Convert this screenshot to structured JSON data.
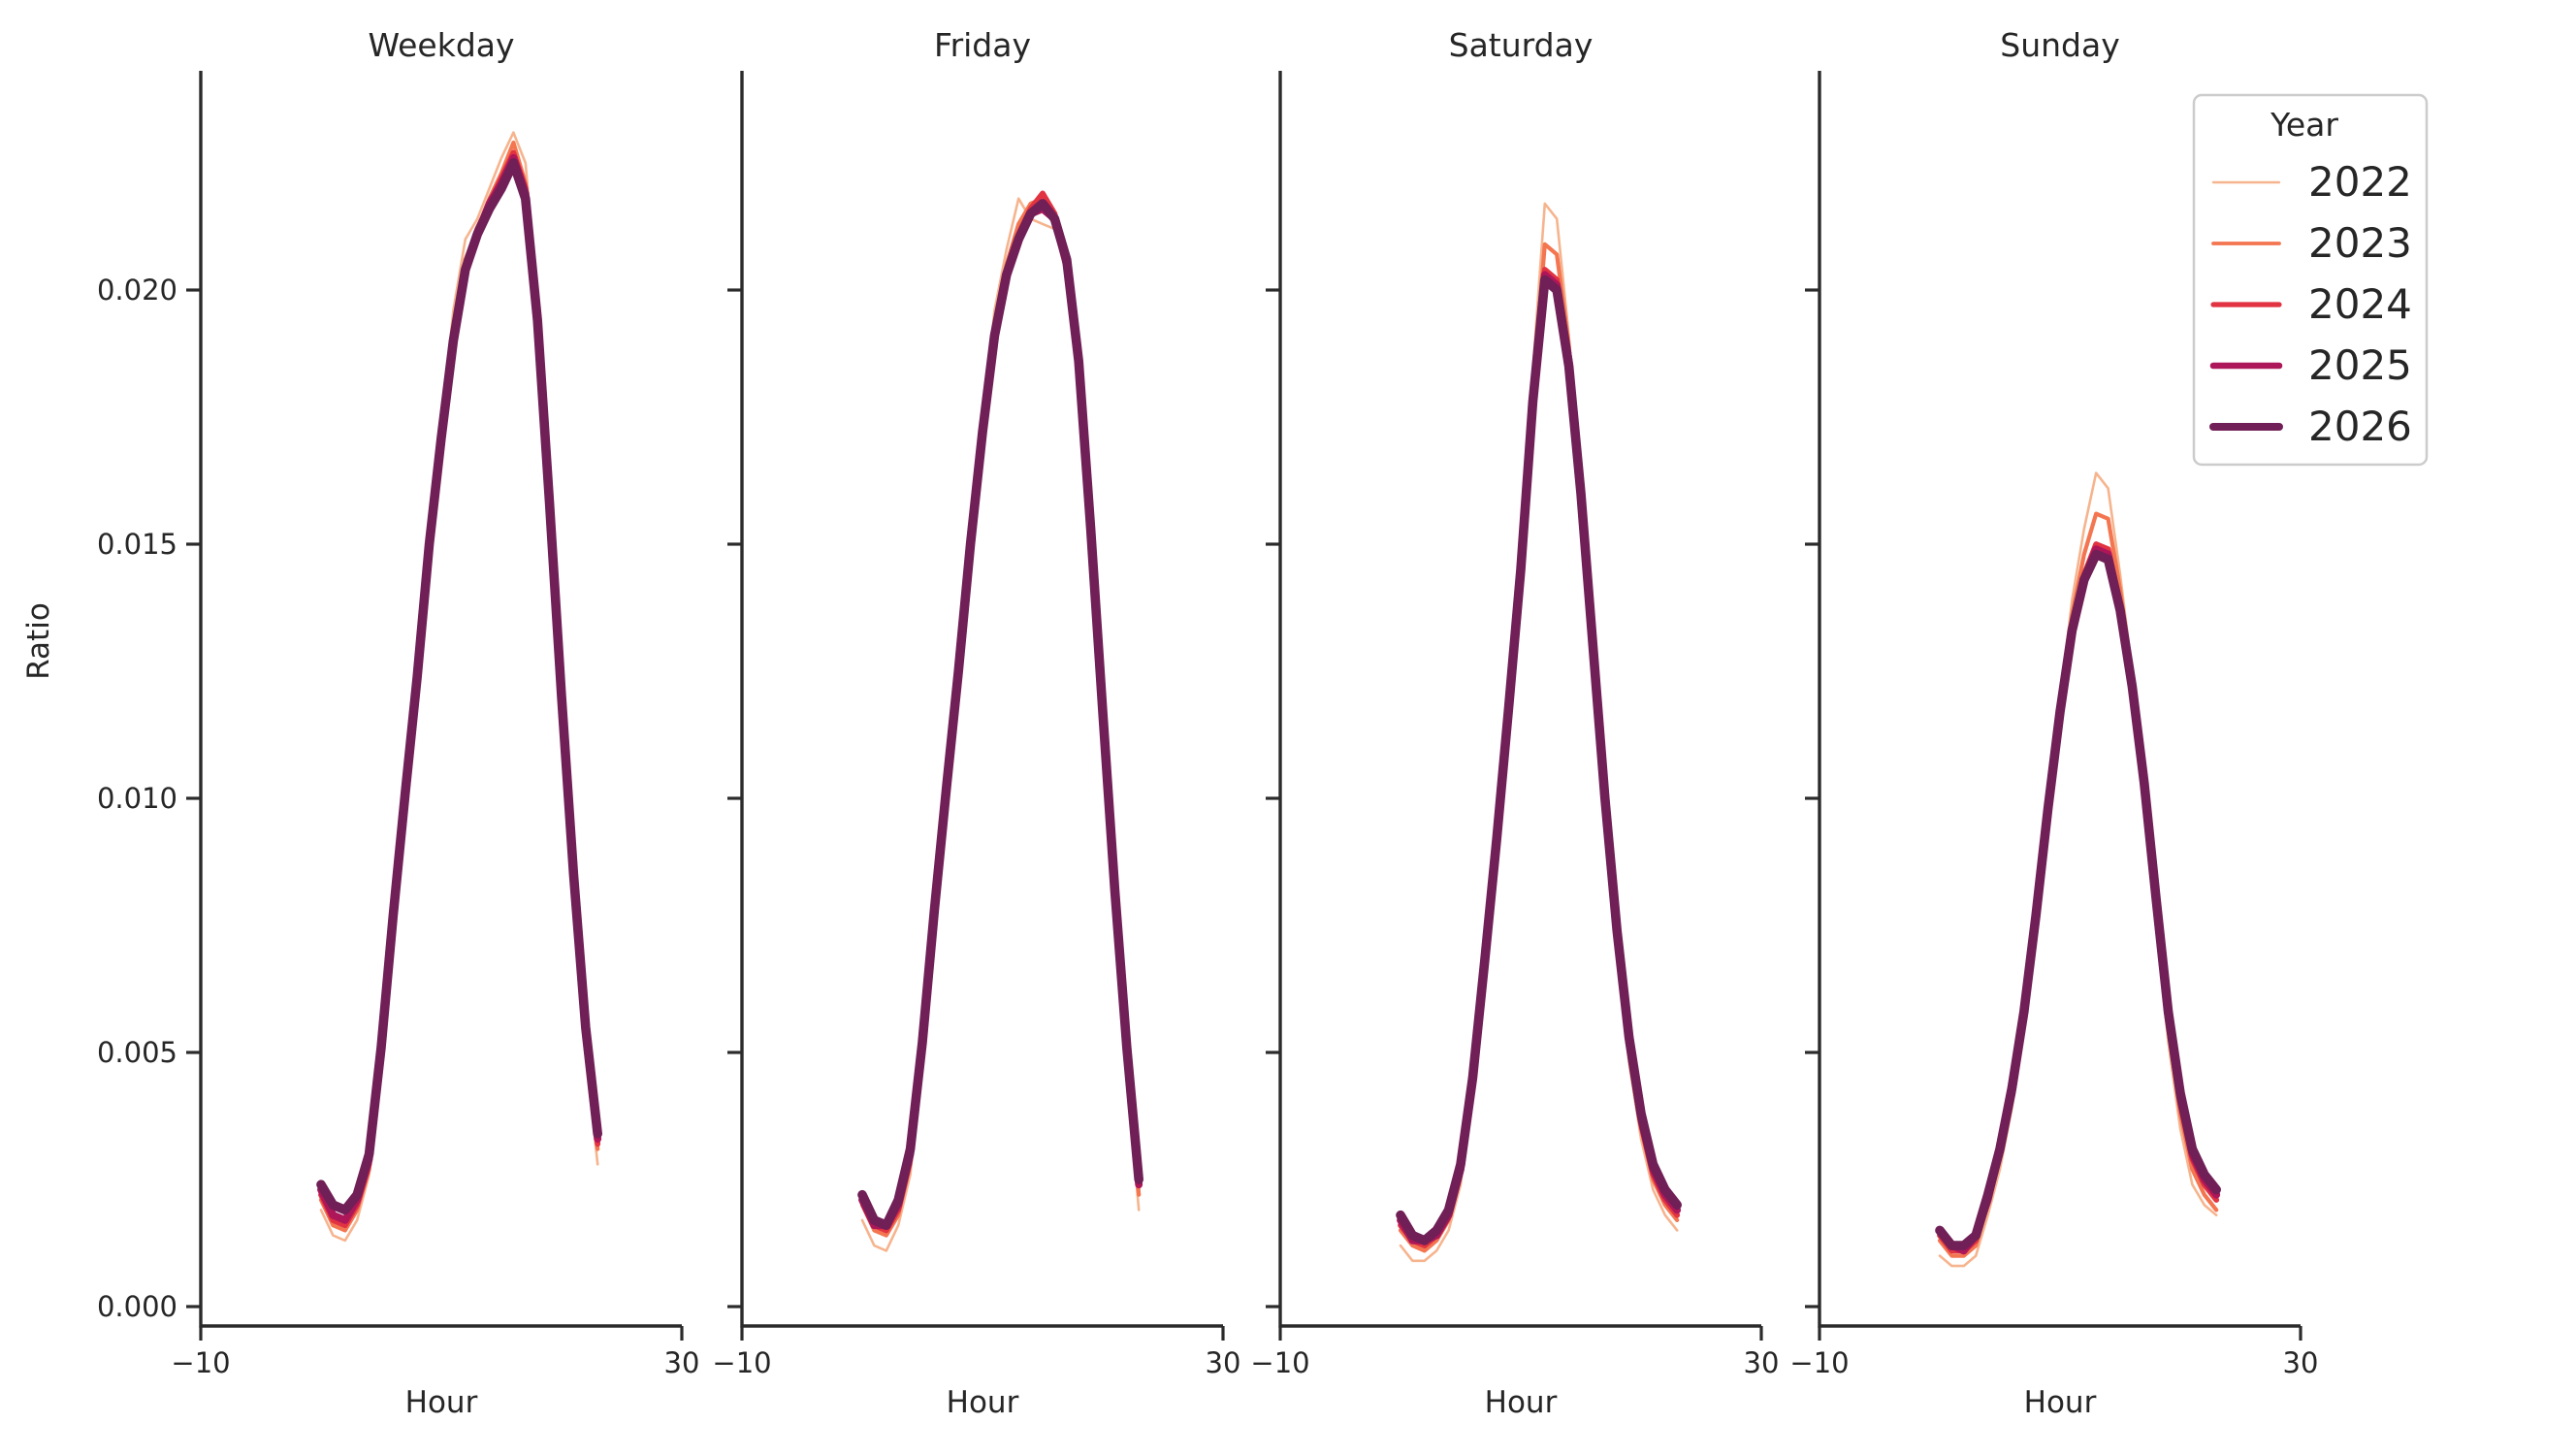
{
  "chart_data": {
    "type": "line",
    "xlabel": "Hour",
    "ylabel": "Ratio",
    "x_hours": [
      0,
      1,
      2,
      3,
      4,
      5,
      6,
      7,
      8,
      9,
      10,
      11,
      12,
      13,
      14,
      15,
      16,
      17,
      18,
      19,
      20,
      21,
      22,
      23
    ],
    "xlim": [
      -10,
      30
    ],
    "ylim": [
      -0.0004,
      0.0243
    ],
    "grid": false,
    "xtick_values": [
      -10,
      30
    ],
    "xtick_labels": [
      "−10",
      "30"
    ],
    "ytick_values": [
      0,
      0.005,
      0.01,
      0.015,
      0.02
    ],
    "ytick_labels": [
      "0.000",
      "0.005",
      "0.010",
      "0.015",
      "0.020"
    ],
    "legend": {
      "title": "Year",
      "position": "upper right outside"
    },
    "series": [
      {
        "name": "2022",
        "color": "#f6b48e",
        "plot_width": 2.6,
        "legend_width": 2.4
      },
      {
        "name": "2023",
        "color": "#f37651",
        "plot_width": 4.2,
        "legend_width": 3.8
      },
      {
        "name": "2024",
        "color": "#e13342",
        "plot_width": 5.8,
        "legend_width": 5.2
      },
      {
        "name": "2025",
        "color": "#ad1759",
        "plot_width": 7.8,
        "legend_width": 6.6
      },
      {
        "name": "2026",
        "color": "#701f57",
        "plot_width": 9.6,
        "legend_width": 8.0
      }
    ],
    "facets": [
      {
        "title": "Weekday",
        "series": [
          {
            "name": "2022",
            "values": [
              0.0019,
              0.0014,
              0.0013,
              0.0017,
              0.0026,
              0.0049,
              0.0077,
              0.0101,
              0.0125,
              0.0151,
              0.0173,
              0.0196,
              0.021,
              0.0214,
              0.022,
              0.0226,
              0.0231,
              0.0225,
              0.0198,
              0.0159,
              0.0119,
              0.0083,
              0.005,
              0.0028
            ]
          },
          {
            "name": "2023",
            "values": [
              0.0021,
              0.0016,
              0.0015,
              0.0019,
              0.0027,
              0.005,
              0.0077,
              0.0101,
              0.0124,
              0.015,
              0.0171,
              0.0191,
              0.0206,
              0.0212,
              0.0218,
              0.0223,
              0.0229,
              0.0221,
              0.0196,
              0.0158,
              0.0119,
              0.0084,
              0.0052,
              0.0031
            ]
          },
          {
            "name": "2024",
            "values": [
              0.0022,
              0.0017,
              0.0016,
              0.002,
              0.0028,
              0.005,
              0.0077,
              0.0101,
              0.0124,
              0.015,
              0.0171,
              0.019,
              0.0205,
              0.0212,
              0.0217,
              0.0222,
              0.0227,
              0.022,
              0.0195,
              0.0158,
              0.012,
              0.0085,
              0.0053,
              0.0032
            ]
          },
          {
            "name": "2025",
            "values": [
              0.0023,
              0.0018,
              0.0017,
              0.0021,
              0.0029,
              0.005,
              0.0077,
              0.0101,
              0.0124,
              0.015,
              0.0171,
              0.019,
              0.0204,
              0.0211,
              0.0217,
              0.0221,
              0.0226,
              0.0219,
              0.0194,
              0.0158,
              0.012,
              0.0085,
              0.0054,
              0.0033
            ]
          },
          {
            "name": "2026",
            "values": [
              0.0024,
              0.002,
              0.0019,
              0.0022,
              0.003,
              0.0051,
              0.0077,
              0.0101,
              0.0124,
              0.015,
              0.0171,
              0.019,
              0.0204,
              0.0211,
              0.0216,
              0.022,
              0.0225,
              0.0218,
              0.0194,
              0.0158,
              0.012,
              0.0085,
              0.0055,
              0.0034
            ]
          }
        ]
      },
      {
        "title": "Friday",
        "series": [
          {
            "name": "2022",
            "values": [
              0.0017,
              0.0012,
              0.0011,
              0.0016,
              0.0026,
              0.005,
              0.0078,
              0.0102,
              0.0126,
              0.0151,
              0.0174,
              0.0196,
              0.0208,
              0.0218,
              0.0214,
              0.0213,
              0.0212,
              0.0203,
              0.0183,
              0.015,
              0.0114,
              0.0078,
              0.0046,
              0.0019
            ]
          },
          {
            "name": "2023",
            "values": [
              0.002,
              0.0015,
              0.0014,
              0.0018,
              0.0028,
              0.0051,
              0.0078,
              0.0102,
              0.0125,
              0.015,
              0.0172,
              0.0192,
              0.0205,
              0.0213,
              0.0217,
              0.0218,
              0.0214,
              0.0205,
              0.0185,
              0.0152,
              0.0116,
              0.008,
              0.0048,
              0.0022
            ]
          },
          {
            "name": "2024",
            "values": [
              0.0021,
              0.0016,
              0.0015,
              0.0019,
              0.0029,
              0.0051,
              0.0078,
              0.0102,
              0.0125,
              0.015,
              0.0172,
              0.0191,
              0.0204,
              0.0211,
              0.0216,
              0.0219,
              0.0215,
              0.0206,
              0.0186,
              0.0153,
              0.0117,
              0.0081,
              0.0049,
              0.0024
            ]
          },
          {
            "name": "2025",
            "values": [
              0.0021,
              0.0016,
              0.0016,
              0.002,
              0.003,
              0.0052,
              0.0078,
              0.0102,
              0.0125,
              0.015,
              0.0172,
              0.0191,
              0.0203,
              0.021,
              0.0215,
              0.0216,
              0.0214,
              0.0205,
              0.0186,
              0.0153,
              0.0117,
              0.0082,
              0.005,
              0.0024
            ]
          },
          {
            "name": "2026",
            "values": [
              0.0022,
              0.0017,
              0.0016,
              0.0021,
              0.0031,
              0.0052,
              0.0078,
              0.0102,
              0.0125,
              0.015,
              0.0172,
              0.0191,
              0.0203,
              0.021,
              0.0215,
              0.0217,
              0.0214,
              0.0206,
              0.0186,
              0.0153,
              0.0117,
              0.0082,
              0.0051,
              0.0025
            ]
          }
        ]
      },
      {
        "title": "Saturday",
        "series": [
          {
            "name": "2022",
            "values": [
              0.0012,
              0.0009,
              0.0009,
              0.0011,
              0.0015,
              0.0024,
              0.0044,
              0.0068,
              0.0093,
              0.012,
              0.0148,
              0.0184,
              0.0217,
              0.0214,
              0.0191,
              0.0162,
              0.013,
              0.0098,
              0.007,
              0.0048,
              0.0033,
              0.0023,
              0.0018,
              0.0015
            ]
          },
          {
            "name": "2023",
            "values": [
              0.0015,
              0.0012,
              0.0011,
              0.0013,
              0.0017,
              0.0026,
              0.0045,
              0.0068,
              0.0092,
              0.0119,
              0.0146,
              0.018,
              0.0209,
              0.0207,
              0.0189,
              0.0161,
              0.013,
              0.0099,
              0.0072,
              0.005,
              0.0035,
              0.0025,
              0.002,
              0.0017
            ]
          },
          {
            "name": "2024",
            "values": [
              0.0016,
              0.0013,
              0.0012,
              0.0014,
              0.0018,
              0.0027,
              0.0045,
              0.0068,
              0.0092,
              0.0118,
              0.0145,
              0.0179,
              0.0204,
              0.0202,
              0.0186,
              0.016,
              0.013,
              0.01,
              0.0073,
              0.0051,
              0.0036,
              0.0026,
              0.0021,
              0.0018
            ]
          },
          {
            "name": "2025",
            "values": [
              0.0017,
              0.0013,
              0.0013,
              0.0014,
              0.0018,
              0.0027,
              0.0045,
              0.0068,
              0.0092,
              0.0118,
              0.0145,
              0.0178,
              0.0203,
              0.0201,
              0.0186,
              0.016,
              0.013,
              0.01,
              0.0074,
              0.0052,
              0.0037,
              0.0027,
              0.0022,
              0.0019
            ]
          },
          {
            "name": "2026",
            "values": [
              0.0018,
              0.0014,
              0.0013,
              0.0015,
              0.0019,
              0.0028,
              0.0045,
              0.0068,
              0.0092,
              0.0118,
              0.0145,
              0.0178,
              0.0202,
              0.02,
              0.0185,
              0.016,
              0.013,
              0.01,
              0.0074,
              0.0053,
              0.0038,
              0.0028,
              0.0023,
              0.002
            ]
          }
        ]
      },
      {
        "title": "Sunday",
        "series": [
          {
            "name": "2022",
            "values": [
              0.001,
              0.0008,
              0.0008,
              0.001,
              0.0018,
              0.0027,
              0.0039,
              0.0054,
              0.0075,
              0.0097,
              0.0119,
              0.0139,
              0.0153,
              0.0164,
              0.0161,
              0.0144,
              0.0125,
              0.0101,
              0.0075,
              0.0052,
              0.0035,
              0.0024,
              0.002,
              0.0018
            ]
          },
          {
            "name": "2023",
            "values": [
              0.0013,
              0.001,
              0.001,
              0.0012,
              0.002,
              0.0029,
              0.0041,
              0.0056,
              0.0076,
              0.0098,
              0.0118,
              0.0136,
              0.0148,
              0.0156,
              0.0155,
              0.0141,
              0.0124,
              0.0102,
              0.0077,
              0.0055,
              0.0038,
              0.0027,
              0.0022,
              0.0019
            ]
          },
          {
            "name": "2024",
            "values": [
              0.0014,
              0.0011,
              0.0011,
              0.0013,
              0.0021,
              0.003,
              0.0042,
              0.0057,
              0.0077,
              0.0098,
              0.0117,
              0.0134,
              0.0144,
              0.015,
              0.0149,
              0.0138,
              0.0122,
              0.0102,
              0.0078,
              0.0056,
              0.004,
              0.0029,
              0.0024,
              0.0021
            ]
          },
          {
            "name": "2025",
            "values": [
              0.0015,
              0.0012,
              0.0011,
              0.0014,
              0.0021,
              0.0031,
              0.0042,
              0.0058,
              0.0077,
              0.0098,
              0.0117,
              0.0133,
              0.0143,
              0.0149,
              0.0148,
              0.0137,
              0.0122,
              0.0102,
              0.0079,
              0.0057,
              0.0041,
              0.003,
              0.0025,
              0.0022
            ]
          },
          {
            "name": "2026",
            "values": [
              0.0015,
              0.0012,
              0.0012,
              0.0014,
              0.0022,
              0.0031,
              0.0043,
              0.0058,
              0.0077,
              0.0098,
              0.0117,
              0.0133,
              0.0143,
              0.0148,
              0.0147,
              0.0137,
              0.0122,
              0.0103,
              0.008,
              0.0058,
              0.0042,
              0.0031,
              0.0026,
              0.0023
            ]
          }
        ]
      }
    ],
    "style": {
      "spine_color": "#2b2b2b",
      "text_color": "#262626",
      "background": "#ffffff"
    }
  }
}
